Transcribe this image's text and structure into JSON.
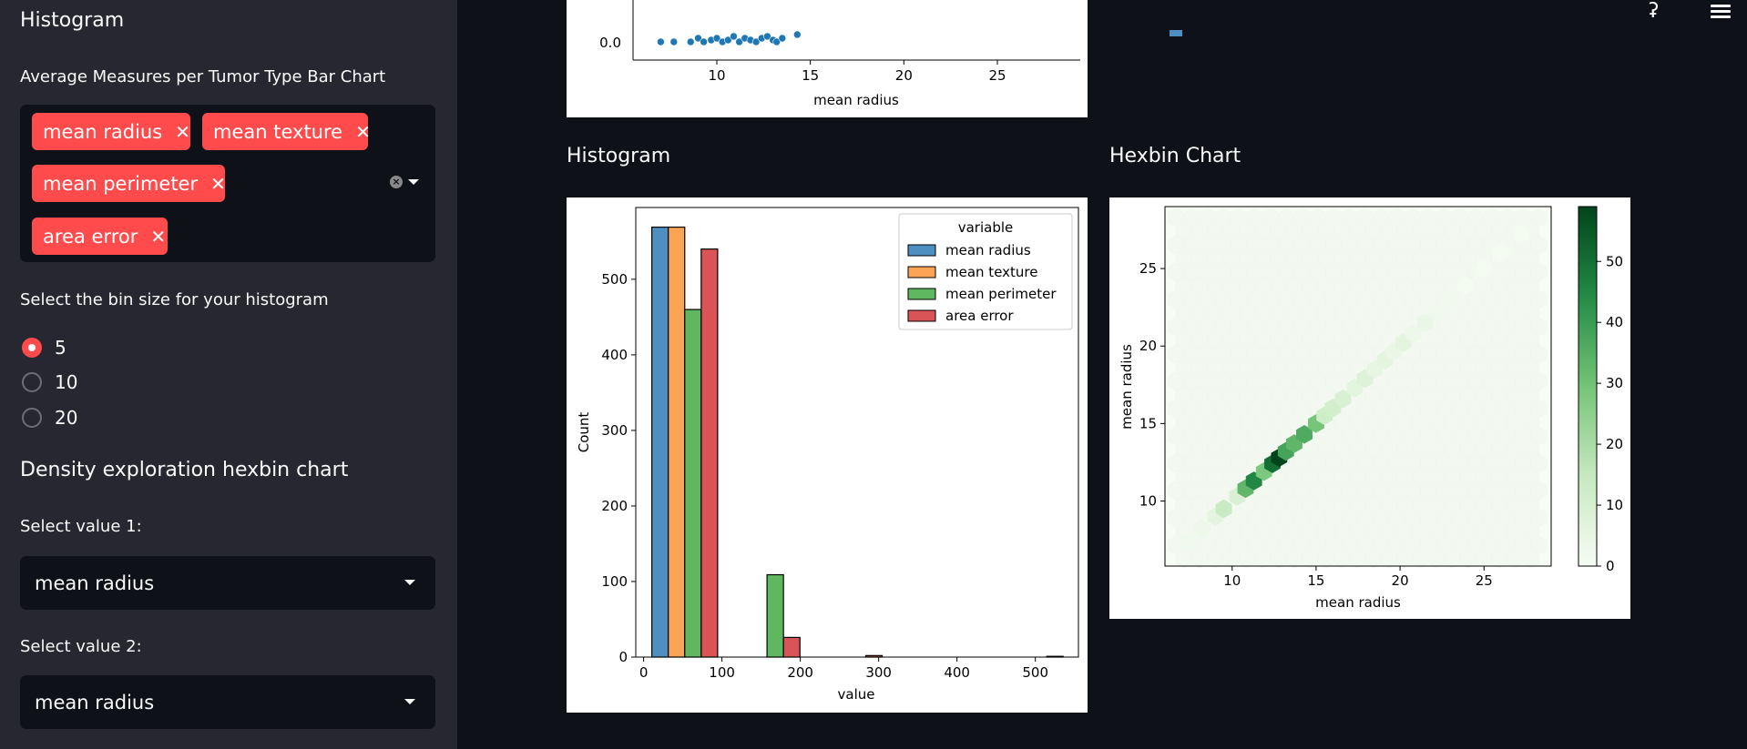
{
  "sidebar": {
    "histogram_title": "Histogram",
    "bar_chart_label": "Average Measures per Tumor Type Bar Chart",
    "multiselect_tags": [
      "mean radius",
      "mean texture",
      "mean perimeter",
      "area error"
    ],
    "tag_remove_glyph": "✕",
    "clear_glyph": "×",
    "bin_size_label": "Select the bin size for your histogram",
    "bin_options": [
      "5",
      "10",
      "20"
    ],
    "bin_selected": "5",
    "density_title": "Density exploration hexbin chart",
    "value1_label": "Select value 1:",
    "value1": "mean radius",
    "value2_label": "Select value 2:",
    "value2": "mean radius"
  },
  "main": {
    "histogram_title": "Histogram",
    "hexbin_title": "Hexbin Chart",
    "running_glyph": "ʡ"
  },
  "colors": {
    "accent": "#ff4b4b",
    "sidebar_bg": "#262730",
    "app_bg": "#0e1117",
    "series": [
      "#4c8fc0",
      "#fba455",
      "#5fb85f",
      "#d95456"
    ]
  },
  "chart_data": [
    {
      "type": "scatter",
      "partial": true,
      "xlabel": "mean radius",
      "x_ticks": [
        "10",
        "15",
        "20",
        "25"
      ],
      "y_ticks_visible": [
        "0.0"
      ],
      "x": [
        7.0,
        7.7,
        8.6,
        9.0,
        9.3,
        9.7,
        10.0,
        10.3,
        10.6,
        10.9,
        11.2,
        11.5,
        11.8,
        12.1,
        12.4,
        12.7,
        13.0,
        13.2,
        13.5,
        14.3
      ],
      "y": [
        0,
        0,
        0,
        0.02,
        0,
        0.01,
        0.02,
        0,
        0.01,
        0.03,
        0,
        0.02,
        0.01,
        0,
        0.02,
        0.03,
        0.01,
        0,
        0.02,
        0.04
      ]
    },
    {
      "type": "bar",
      "title": "",
      "xlabel": "value",
      "ylabel": "Count",
      "x_ticks": [
        "0",
        "100",
        "200",
        "300",
        "400",
        "500"
      ],
      "y_ticks": [
        "0",
        "100",
        "200",
        "300",
        "400",
        "500"
      ],
      "xlim": [
        -10,
        555
      ],
      "ylim": [
        0,
        595
      ],
      "legend_title": "variable",
      "legend_position": "top-right",
      "bin_width": 21,
      "series": [
        {
          "name": "mean radius",
          "bins": [
            {
              "x": 21,
              "count": 569
            }
          ]
        },
        {
          "name": "mean texture",
          "bins": [
            {
              "x": 42,
              "count": 569
            }
          ]
        },
        {
          "name": "mean perimeter",
          "bins": [
            {
              "x": 63,
              "count": 460
            },
            {
              "x": 168,
              "count": 109
            }
          ]
        },
        {
          "name": "area error",
          "bins": [
            {
              "x": 84,
              "count": 540
            },
            {
              "x": 189,
              "count": 26
            },
            {
              "x": 294,
              "count": 2
            },
            {
              "x": 525,
              "count": 1
            }
          ]
        }
      ]
    },
    {
      "type": "heatmap",
      "subtype": "hexbin",
      "xlabel": "mean radius",
      "ylabel": "mean radius",
      "x_ticks": [
        "10",
        "15",
        "20",
        "25"
      ],
      "y_ticks": [
        "10",
        "15",
        "20",
        "25"
      ],
      "xlim": [
        6,
        29
      ],
      "ylim": [
        5.8,
        29
      ],
      "colorbar_ticks": [
        "0",
        "10",
        "20",
        "30",
        "40",
        "50"
      ],
      "colorbar_range": [
        0,
        59
      ],
      "cells": [
        {
          "v": 7.4,
          "c": 2
        },
        {
          "v": 8.2,
          "c": 3
        },
        {
          "v": 9.0,
          "c": 6
        },
        {
          "v": 9.5,
          "c": 14
        },
        {
          "v": 10.3,
          "c": 9
        },
        {
          "v": 10.8,
          "c": 33
        },
        {
          "v": 11.3,
          "c": 45
        },
        {
          "v": 11.9,
          "c": 28
        },
        {
          "v": 12.4,
          "c": 50
        },
        {
          "v": 12.8,
          "c": 59
        },
        {
          "v": 13.2,
          "c": 38
        },
        {
          "v": 13.7,
          "c": 33
        },
        {
          "v": 14.3,
          "c": 36
        },
        {
          "v": 15.0,
          "c": 29
        },
        {
          "v": 15.5,
          "c": 12
        },
        {
          "v": 16.0,
          "c": 11
        },
        {
          "v": 16.6,
          "c": 9
        },
        {
          "v": 17.3,
          "c": 6
        },
        {
          "v": 17.9,
          "c": 8
        },
        {
          "v": 18.5,
          "c": 5
        },
        {
          "v": 19.1,
          "c": 6
        },
        {
          "v": 19.6,
          "c": 4
        },
        {
          "v": 20.2,
          "c": 6
        },
        {
          "v": 20.8,
          "c": 3
        },
        {
          "v": 21.5,
          "c": 4
        },
        {
          "v": 22.2,
          "c": 2
        },
        {
          "v": 23.0,
          "c": 2
        },
        {
          "v": 23.9,
          "c": 1
        },
        {
          "v": 25.0,
          "c": 1
        },
        {
          "v": 26.0,
          "c": 1
        },
        {
          "v": 27.2,
          "c": 1
        }
      ]
    }
  ]
}
